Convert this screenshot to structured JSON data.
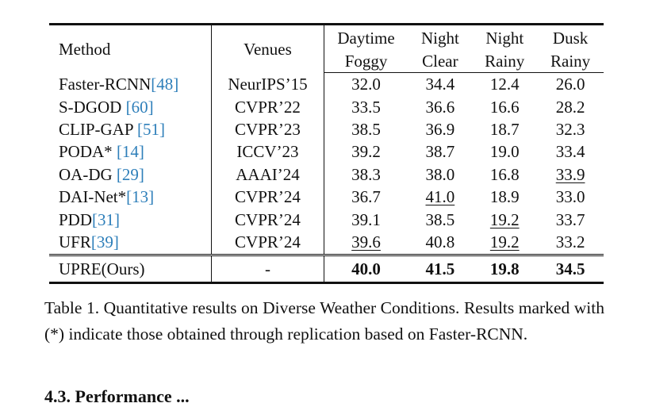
{
  "table": {
    "header": {
      "method": "Method",
      "venues": "Venues",
      "col1_line1": "Daytime",
      "col1_line2": "Foggy",
      "col2_line1": "Night",
      "col2_line2": "Clear",
      "col3_line1": "Night",
      "col3_line2": "Rainy",
      "col4_line1": "Dusk",
      "col4_line2": "Rainy"
    },
    "rows": [
      {
        "name": "Faster-RCNN",
        "ref": "[48]",
        "venue": "NeurIPS’15",
        "v": [
          "32.0",
          "34.4",
          "12.4",
          "26.0"
        ]
      },
      {
        "name": "S-DGOD ",
        "ref": "[60]",
        "venue": "CVPR’22",
        "v": [
          "33.5",
          "36.6",
          "16.6",
          "28.2"
        ]
      },
      {
        "name": "CLIP-GAP ",
        "ref": "[51]",
        "venue": "CVPR’23",
        "v": [
          "38.5",
          "36.9",
          "18.7",
          "32.3"
        ]
      },
      {
        "name": "PODA* ",
        "ref": "[14]",
        "venue": "ICCV’23",
        "v": [
          "39.2",
          "38.7",
          "19.0",
          "33.4"
        ]
      },
      {
        "name": "OA-DG ",
        "ref": "[29]",
        "venue": "AAAI’24",
        "v": [
          "38.3",
          "38.0",
          "16.8",
          "33.9"
        ]
      },
      {
        "name": "DAI-Net*",
        "ref": "[13]",
        "venue": "CVPR’24",
        "v": [
          "36.7",
          "41.0",
          "18.9",
          "33.0"
        ]
      },
      {
        "name": "PDD",
        "ref": "[31]",
        "venue": "CVPR’24",
        "v": [
          "39.1",
          "38.5",
          "19.2",
          "33.7"
        ]
      },
      {
        "name": "UFR",
        "ref": "[39]",
        "venue": "CVPR’24",
        "v": [
          "39.6",
          "40.8",
          "19.2",
          "33.2"
        ]
      }
    ],
    "ours": {
      "name": "UPRE(Ours)",
      "venue": "-",
      "v": [
        "40.0",
        "41.5",
        "19.8",
        "34.5"
      ]
    }
  },
  "caption": "Table 1. Quantitative results on Diverse Weather Conditions. Re­sults marked with (*) indicate those obtained through replication based on Faster-RCNN.",
  "next_section_fragment": "4.3. Performance ..."
}
